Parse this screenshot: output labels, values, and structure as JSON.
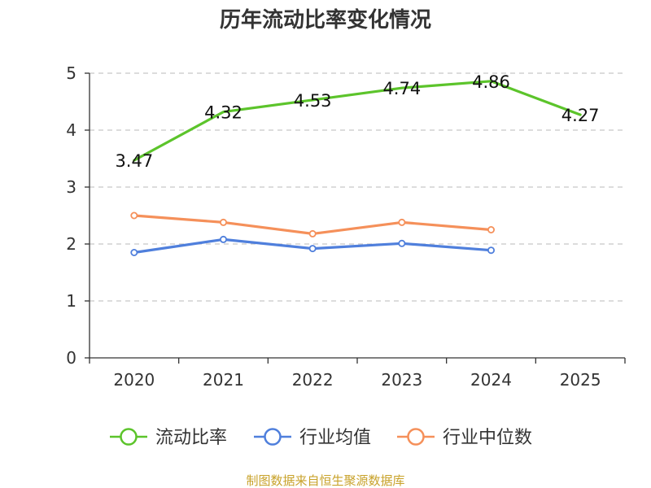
{
  "chart_data": {
    "type": "line",
    "title": "历年流动比率变化情况",
    "categories": [
      "2020",
      "2021",
      "2022",
      "2023",
      "2024",
      "2025"
    ],
    "ylim": [
      0,
      5
    ],
    "yticks": [
      "0",
      "1",
      "2",
      "3",
      "4",
      "5"
    ],
    "grid": true,
    "legend_position": "bottom",
    "series": [
      {
        "name": "流动比率",
        "color": "#5cc42b",
        "marker": "none",
        "values": [
          3.47,
          4.32,
          4.53,
          4.74,
          4.86,
          4.27
        ],
        "labels": [
          "3.47",
          "4.32",
          "4.53",
          "4.74",
          "4.86",
          "4.27"
        ]
      },
      {
        "name": "行业均值",
        "color": "#4f7fdc",
        "marker": "circle",
        "values": [
          1.85,
          2.08,
          1.92,
          2.01,
          1.89,
          null
        ]
      },
      {
        "name": "行业中位数",
        "color": "#f5905a",
        "marker": "circle",
        "values": [
          2.5,
          2.38,
          2.18,
          2.38,
          2.25,
          null
        ]
      }
    ],
    "source": "制图数据来自恒生聚源数据库"
  }
}
